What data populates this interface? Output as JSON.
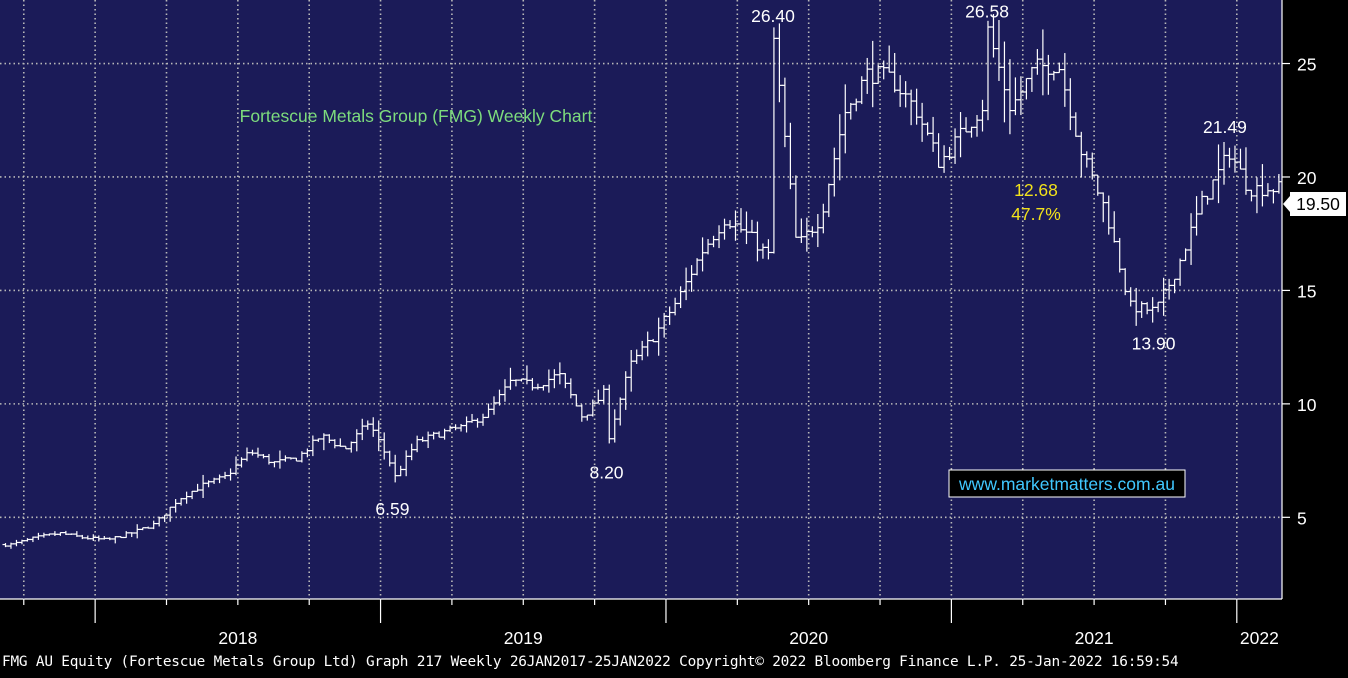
{
  "chart_data": {
    "type": "bar",
    "subtype": "ohlc-weekly",
    "title": "Fortescue Metals Group (FMG) Weekly Chart",
    "xlabel": "",
    "ylabel": "",
    "x_ticks": [
      "2018",
      "2019",
      "2020",
      "2021",
      "2022"
    ],
    "y_ticks": [
      5,
      10,
      15,
      20,
      25
    ],
    "ylim": [
      1.4,
      27.8
    ],
    "grid": true,
    "last_price": "19.50",
    "annotations": [
      {
        "text": "26.40",
        "x": "2020-05",
        "y": 26.4
      },
      {
        "text": "26.58",
        "x": "2021-02",
        "y": 26.58
      },
      {
        "text": "21.49",
        "x": "2021-12",
        "y": 21.49
      },
      {
        "text": "6.59",
        "x": "2019-01",
        "y": 6.59
      },
      {
        "text": "8.20",
        "x": "2019-10",
        "y": 8.2
      },
      {
        "text": "13.90",
        "x": "2021-09",
        "y": 13.9
      },
      {
        "text": "12.68",
        "color": "#f2e21b"
      },
      {
        "text": "47.7%",
        "color": "#f2e21b"
      }
    ],
    "watermark": "www.marketmatters.com.au",
    "series": [
      {
        "values": [
          {
            "x": "2017-09",
            "y": 3.8
          },
          {
            "x": "2017-10",
            "y": 4.1
          },
          {
            "x": "2017-11",
            "y": 4.3
          },
          {
            "x": "2017-12",
            "y": 4.1
          },
          {
            "x": "2018-01",
            "y": 4.0
          },
          {
            "x": "2018-02",
            "y": 4.3
          },
          {
            "x": "2018-03",
            "y": 4.7
          },
          {
            "x": "2018-04",
            "y": 5.8
          },
          {
            "x": "2018-05",
            "y": 6.4
          },
          {
            "x": "2018-06",
            "y": 6.8
          },
          {
            "x": "2018-07",
            "y": 7.9
          },
          {
            "x": "2018-08",
            "y": 7.4
          },
          {
            "x": "2018-09",
            "y": 7.6
          },
          {
            "x": "2018-10",
            "y": 8.6
          },
          {
            "x": "2018-11",
            "y": 8.0
          },
          {
            "x": "2018-12",
            "y": 9.2
          },
          {
            "x": "2019-01",
            "y": 7.2
          },
          {
            "x": "2019-02",
            "y": 8.3
          },
          {
            "x": "2019-03",
            "y": 8.7
          },
          {
            "x": "2019-04",
            "y": 9.0
          },
          {
            "x": "2019-05",
            "y": 9.6
          },
          {
            "x": "2019-06",
            "y": 11.0
          },
          {
            "x": "2019-07",
            "y": 10.8
          },
          {
            "x": "2019-08",
            "y": 11.3
          },
          {
            "x": "2019-09",
            "y": 9.4
          },
          {
            "x": "2019-10",
            "y": 10.6
          },
          {
            "x": "2019-11",
            "y": 11.7
          },
          {
            "x": "2019-12",
            "y": 13.0
          },
          {
            "x": "2020-01",
            "y": 14.6
          },
          {
            "x": "2020-02",
            "y": 16.7
          },
          {
            "x": "2020-03",
            "y": 18.2
          },
          {
            "x": "2020-04",
            "y": 17.4
          },
          {
            "x": "2020-05",
            "y": 16.3
          },
          {
            "x": "2020-06",
            "y": 16.9
          },
          {
            "x": "2020-07",
            "y": 18.2
          },
          {
            "x": "2020-08",
            "y": 22.8
          },
          {
            "x": "2020-09",
            "y": 24.6
          },
          {
            "x": "2020-10",
            "y": 24.3
          },
          {
            "x": "2020-11",
            "y": 23.0
          },
          {
            "x": "2020-12",
            "y": 20.6
          },
          {
            "x": "2021-01",
            "y": 22.0
          },
          {
            "x": "2021-02",
            "y": 23.4
          },
          {
            "x": "2021-03",
            "y": 23.0
          },
          {
            "x": "2021-04",
            "y": 24.8
          },
          {
            "x": "2021-05",
            "y": 25.0
          },
          {
            "x": "2021-06",
            "y": 21.0
          },
          {
            "x": "2021-07",
            "y": 18.5
          },
          {
            "x": "2021-08",
            "y": 14.3
          },
          {
            "x": "2021-09",
            "y": 14.1
          },
          {
            "x": "2021-10",
            "y": 16.0
          },
          {
            "x": "2021-11",
            "y": 18.8
          },
          {
            "x": "2021-12",
            "y": 20.7
          },
          {
            "x": "2022-01",
            "y": 19.5
          }
        ]
      }
    ]
  },
  "footer": "FMG AU Equity (Fortescue Metals Group Ltd) Graph 217  Weekly 26JAN2017-25JAN2022 Copyright© 2022 Bloomberg Finance L.P. 25-Jan-2022 16:59:54"
}
